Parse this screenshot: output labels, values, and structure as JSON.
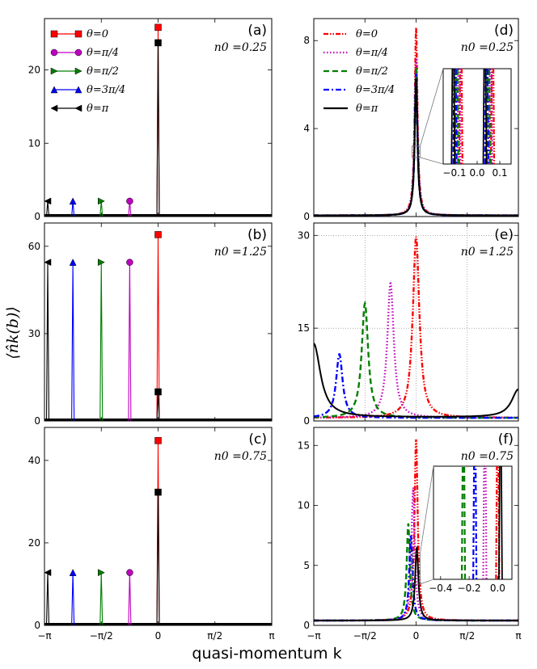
{
  "figure": {
    "xlabel": "quasi-momentum k",
    "ylabel": "⟨n̂k(b)⟩"
  },
  "colors": {
    "theta_0": "#ff0000",
    "theta_pi4": "#bf00bf",
    "theta_pi2": "#008000",
    "theta_3pi4": "#0000ff",
    "theta_pi": "#000000"
  },
  "chart_data": [
    {
      "id": "a",
      "type": "line",
      "panel_label": "(a)",
      "n0_label": "n0 =0.25",
      "xlim": [
        -3.1416,
        3.1416
      ],
      "ylim": [
        0,
        27
      ],
      "yticks": [
        0,
        10,
        20
      ],
      "xticks": [
        -3.1416,
        -1.5708,
        0,
        1.5708,
        3.1416
      ],
      "xticklabels": [
        "",
        "",
        "",
        "",
        ""
      ],
      "grid": false,
      "legend": {
        "position": "top-left",
        "entries": [
          "θ=0",
          "θ=π/4",
          "θ=π/2",
          "θ=3π/4",
          "θ=π"
        ]
      },
      "series": [
        {
          "name": "θ=0",
          "peak_x": 0,
          "peak_y": 25.8,
          "marker": "square"
        },
        {
          "name": "θ=π/4",
          "peak_x": -0.785,
          "peak_y": 2.1,
          "marker": "circle"
        },
        {
          "name": "θ=π/2",
          "peak_x": -1.5708,
          "peak_y": 2.1,
          "marker": "triangle-right"
        },
        {
          "name": "θ=3π/4",
          "peak_x": -2.356,
          "peak_y": 2.1,
          "marker": "triangle-up"
        },
        {
          "name": "θ=π",
          "peak_x": -3.1416,
          "peak_y": 2.1,
          "secondary_x": 0,
          "secondary_y": 23.7,
          "marker": "triangle-left"
        }
      ]
    },
    {
      "id": "b",
      "type": "line",
      "panel_label": "(b)",
      "n0_label": "n0 =1.25",
      "xlim": [
        -3.1416,
        3.1416
      ],
      "ylim": [
        0,
        68
      ],
      "yticks": [
        0,
        30,
        60
      ],
      "xticks": [
        -3.1416,
        -1.5708,
        0,
        1.5708,
        3.1416
      ],
      "xticklabels": [
        "",
        "",
        "",
        "",
        ""
      ],
      "grid": false,
      "series": [
        {
          "name": "θ=0",
          "peak_x": 0,
          "peak_y": 64,
          "marker": "square"
        },
        {
          "name": "θ=π/4",
          "peak_x": -0.785,
          "peak_y": 54.5,
          "marker": "circle"
        },
        {
          "name": "θ=π/2",
          "peak_x": -1.5708,
          "peak_y": 54.5,
          "marker": "triangle-right"
        },
        {
          "name": "θ=3π/4",
          "peak_x": -2.356,
          "peak_y": 54.5,
          "marker": "triangle-up"
        },
        {
          "name": "θ=π",
          "peak_x": -3.1416,
          "peak_y": 54.5,
          "secondary_x": 0,
          "secondary_y": 10,
          "marker": "triangle-left"
        }
      ]
    },
    {
      "id": "c",
      "type": "line",
      "panel_label": "(c)",
      "n0_label": "n0 =0.75",
      "xlim": [
        -3.1416,
        3.1416
      ],
      "ylim": [
        0,
        48
      ],
      "yticks": [
        0,
        20,
        40
      ],
      "xticks": [
        -3.1416,
        -1.5708,
        0,
        1.5708,
        3.1416
      ],
      "xticklabels": [
        "−π",
        "−π/2",
        "0",
        "π/2",
        "π"
      ],
      "grid": false,
      "series": [
        {
          "name": "θ=0",
          "peak_x": 0,
          "peak_y": 44.8,
          "marker": "square"
        },
        {
          "name": "θ=π/4",
          "peak_x": -0.785,
          "peak_y": 12.8,
          "marker": "circle"
        },
        {
          "name": "θ=π/2",
          "peak_x": -1.5708,
          "peak_y": 12.8,
          "marker": "triangle-right"
        },
        {
          "name": "θ=3π/4",
          "peak_x": -2.356,
          "peak_y": 12.8,
          "marker": "triangle-up"
        },
        {
          "name": "θ=π",
          "peak_x": -3.1416,
          "peak_y": 12.8,
          "secondary_x": 0,
          "secondary_y": 32.3,
          "marker": "triangle-left"
        }
      ]
    },
    {
      "id": "d",
      "type": "line",
      "panel_label": "(d)",
      "n0_label": "n0 =0.25",
      "xlim": [
        -3.1416,
        3.1416
      ],
      "ylim": [
        0,
        9
      ],
      "yticks": [
        0,
        4,
        8
      ],
      "xticks": [
        -3.1416,
        -1.5708,
        0,
        1.5708,
        3.1416
      ],
      "xticklabels": [
        "",
        "",
        "",
        "",
        ""
      ],
      "grid": false,
      "legend": {
        "position": "top-left",
        "entries": [
          "θ=0",
          "θ=π/4",
          "θ=π/2",
          "θ=3π/4",
          "θ=π"
        ]
      },
      "series": [
        {
          "name": "θ=0",
          "peak_x": 0,
          "peak_y": 8.6,
          "width": 0.05,
          "base": 0.05,
          "style": "dashdotdot"
        },
        {
          "name": "θ=π/4",
          "peak_x": 0,
          "peak_y": 7.2,
          "width": 0.05,
          "base": 0.05,
          "style": "dotted"
        },
        {
          "name": "θ=π/2",
          "peak_x": 0,
          "peak_y": 6.8,
          "width": 0.05,
          "base": 0.05,
          "style": "dashed"
        },
        {
          "name": "θ=3π/4",
          "peak_x": 0,
          "peak_y": 6.5,
          "width": 0.05,
          "base": 0.05,
          "style": "dashdot"
        },
        {
          "name": "θ=π",
          "peak_x": 0,
          "peak_y": 6.3,
          "width": 0.05,
          "base": 0.05,
          "style": "solid"
        }
      ],
      "inset": {
        "xlim": [
          -0.15,
          0.15
        ],
        "xticks": [
          -0.1,
          0.0,
          0.1
        ],
        "xticklabels": [
          "−0.1",
          "0.0",
          "0.1"
        ]
      }
    },
    {
      "id": "e",
      "type": "line",
      "panel_label": "(e)",
      "n0_label": "n0 =1.25",
      "xlim": [
        -3.1416,
        3.1416
      ],
      "ylim": [
        0,
        32
      ],
      "yticks": [
        0,
        15,
        30
      ],
      "xticks": [
        -3.1416,
        -1.5708,
        0,
        1.5708,
        3.1416
      ],
      "xticklabels": [
        "",
        "",
        "",
        "",
        ""
      ],
      "grid": true,
      "series": [
        {
          "name": "θ=0",
          "peak_x": 0,
          "peak_y": 29.8,
          "width": 0.12,
          "base": 0.5,
          "style": "dashdotdot"
        },
        {
          "name": "θ=π/4",
          "peak_x": -0.785,
          "peak_y": 22.3,
          "width": 0.12,
          "base": 0.5,
          "style": "dotted"
        },
        {
          "name": "θ=π/2",
          "peak_x": -1.5708,
          "peak_y": 19,
          "width": 0.12,
          "base": 0.5,
          "style": "dashed"
        },
        {
          "name": "θ=3π/4",
          "peak_x": -2.356,
          "peak_y": 10.8,
          "width": 0.12,
          "base": 0.5,
          "style": "dashdot"
        },
        {
          "name": "θ=π",
          "peak_x": -3.1416,
          "peak_y": 12.5,
          "width": 0.25,
          "base": 0.6,
          "style": "solid"
        }
      ]
    },
    {
      "id": "f",
      "type": "line",
      "panel_label": "(f)",
      "n0_label": "n0 =0.75",
      "xlim": [
        -3.1416,
        3.1416
      ],
      "ylim": [
        0,
        16.5
      ],
      "yticks": [
        0,
        5,
        10,
        15
      ],
      "xticks": [
        -3.1416,
        -1.5708,
        0,
        1.5708,
        3.1416
      ],
      "xticklabels": [
        "−π",
        "−π/2",
        "0",
        "π/2",
        "π"
      ],
      "grid": false,
      "series": [
        {
          "name": "θ=0",
          "peak_x": 0,
          "peak_y": 15.5,
          "width": 0.06,
          "base": 0.4,
          "style": "dashdotdot"
        },
        {
          "name": "θ=π/4",
          "peak_x": -0.09,
          "peak_y": 11.5,
          "width": 0.06,
          "base": 0.4,
          "style": "dotted"
        },
        {
          "name": "θ=π/2",
          "peak_x": -0.24,
          "peak_y": 8.5,
          "width": 0.06,
          "base": 0.4,
          "style": "dashed"
        },
        {
          "name": "θ=3π/4",
          "peak_x": -0.16,
          "peak_y": 7.5,
          "width": 0.06,
          "base": 0.4,
          "style": "dashdot"
        },
        {
          "name": "θ=π",
          "peak_x": 0.02,
          "peak_y": 6.5,
          "width": 0.06,
          "base": 0.4,
          "style": "solid"
        }
      ],
      "inset": {
        "xlim": [
          -0.45,
          0.1
        ],
        "xticks": [
          -0.4,
          -0.2,
          0.0
        ],
        "xticklabels": [
          "−0.4",
          "−0.2",
          "0.0"
        ]
      }
    }
  ]
}
